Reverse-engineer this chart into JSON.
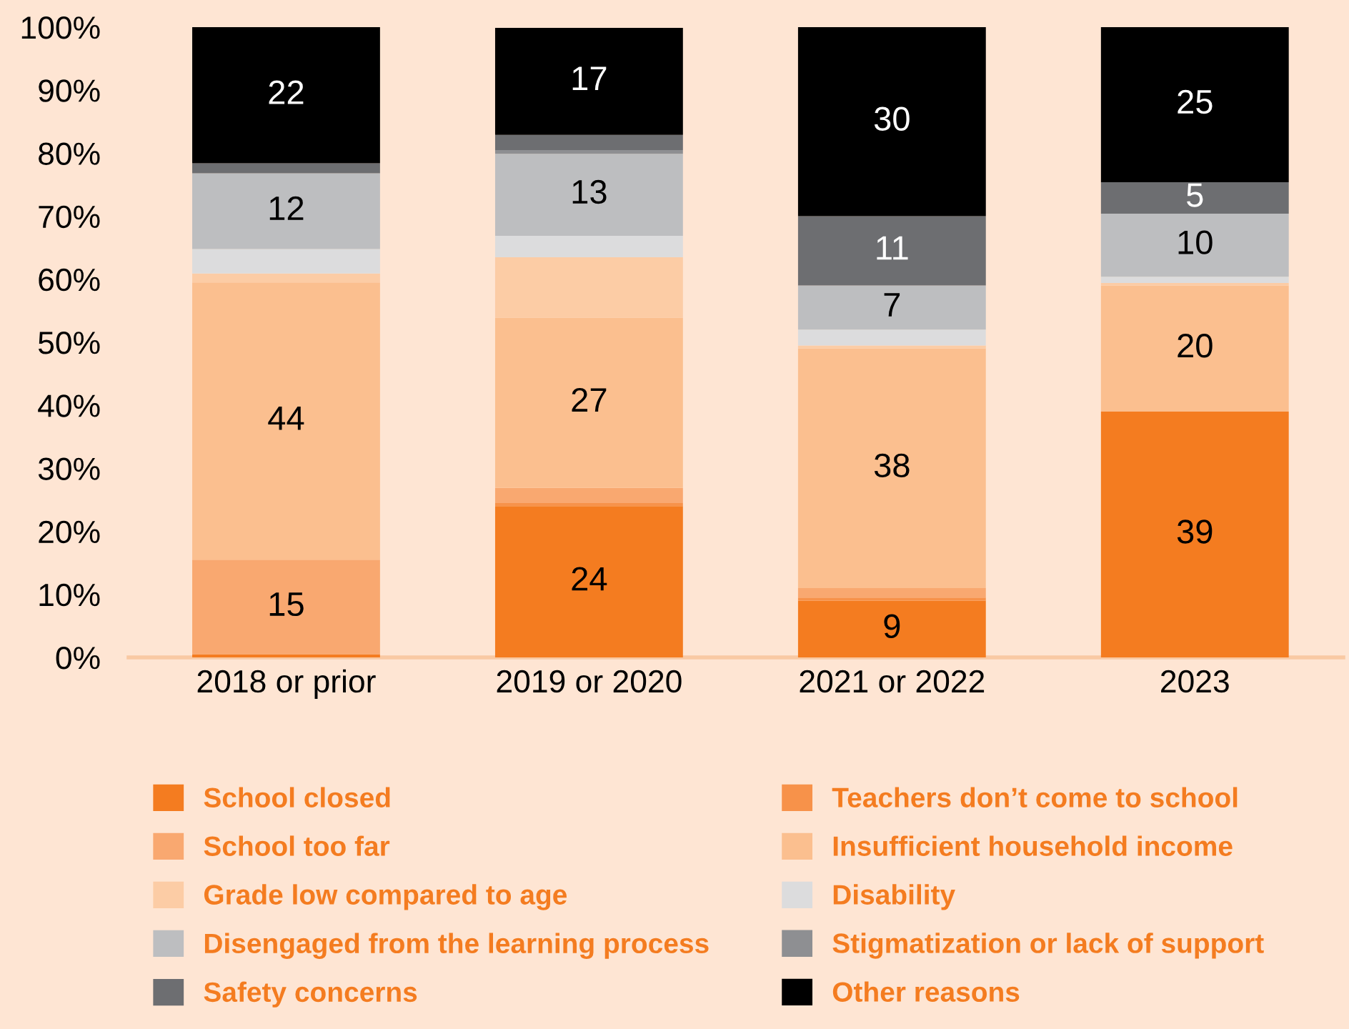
{
  "chart_data": {
    "type": "bar",
    "stacked": true,
    "categories": [
      "2018 or prior",
      "2019 or 2020",
      "2021 or 2022",
      "2023"
    ],
    "series": [
      {
        "name": "School closed",
        "color": "#f47c20",
        "values": [
          0.5,
          24,
          9,
          39
        ],
        "value_labels": [
          null,
          "24",
          "9",
          "39"
        ]
      },
      {
        "name": "Teachers don’t come to school",
        "color": "#f7924a",
        "values": [
          0,
          0.5,
          0.5,
          0
        ],
        "value_labels": [
          null,
          null,
          null,
          null
        ]
      },
      {
        "name": "School too far",
        "color": "#f9a870",
        "values": [
          15,
          2.4,
          1.5,
          0
        ],
        "value_labels": [
          "15",
          null,
          null,
          null
        ]
      },
      {
        "name": "Insufficient household income",
        "color": "#fbbf8f",
        "values": [
          44,
          27,
          38,
          20
        ],
        "value_labels": [
          "44",
          "27",
          "38",
          "20"
        ]
      },
      {
        "name": "Grade low compared to age",
        "color": "#fccca5",
        "values": [
          1.4,
          9.6,
          0.5,
          0.4
        ],
        "value_labels": [
          null,
          null,
          null,
          null
        ]
      },
      {
        "name": "Disability",
        "color": "#dcdcdd",
        "values": [
          3.9,
          3.4,
          2.5,
          1
        ],
        "value_labels": [
          null,
          null,
          null,
          null
        ]
      },
      {
        "name": "Disengaged from the learning process",
        "color": "#bdbec0",
        "values": [
          12,
          13,
          7,
          10
        ],
        "value_labels": [
          "12",
          "13",
          "7",
          "10"
        ]
      },
      {
        "name": "Stigmatization or lack of support",
        "color": "#8e8f92",
        "values": [
          0,
          0.6,
          0,
          0
        ],
        "value_labels": [
          null,
          null,
          null,
          null
        ]
      },
      {
        "name": "Safety concerns",
        "color": "#6d6e71",
        "values": [
          1.6,
          2.4,
          11,
          5
        ],
        "value_labels": [
          null,
          null,
          "11",
          "5"
        ]
      },
      {
        "name": "Other reasons",
        "color": "#000000",
        "values": [
          22,
          17,
          30,
          25
        ],
        "value_labels": [
          "22",
          "17",
          "30",
          "25"
        ]
      }
    ],
    "ylim": [
      0,
      100
    ],
    "yticks": [
      {
        "value": 0,
        "label": "0%"
      },
      {
        "value": 10,
        "label": "10%"
      },
      {
        "value": 20,
        "label": "20%"
      },
      {
        "value": 30,
        "label": "30%"
      },
      {
        "value": 40,
        "label": "40%"
      },
      {
        "value": 50,
        "label": "50%"
      },
      {
        "value": 60,
        "label": "60%"
      },
      {
        "value": 70,
        "label": "70%"
      },
      {
        "value": 80,
        "label": "80%"
      },
      {
        "value": 90,
        "label": "90%"
      },
      {
        "value": 100,
        "label": "100%"
      }
    ],
    "grid": false,
    "legend": "bottom"
  }
}
